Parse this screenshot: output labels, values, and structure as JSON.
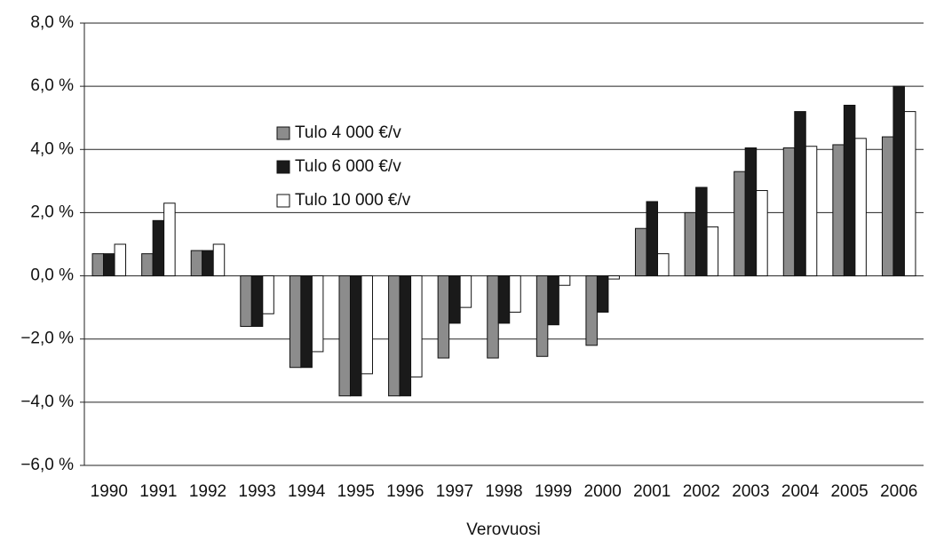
{
  "chart_data": {
    "type": "bar",
    "x_label": "Verovuosi",
    "categories": [
      "1990",
      "1991",
      "1992",
      "1993",
      "1994",
      "1995",
      "1996",
      "1997",
      "1998",
      "1999",
      "2000",
      "2001",
      "2002",
      "2003",
      "2004",
      "2005",
      "2006"
    ],
    "series": [
      {
        "name": "Tulo 4 000 €/v",
        "color": "#8c8c8c",
        "values": [
          0.7,
          0.7,
          0.8,
          -1.6,
          -2.9,
          -3.8,
          -3.8,
          -2.6,
          -2.6,
          -2.55,
          -2.2,
          1.5,
          2.0,
          3.3,
          4.05,
          4.15,
          4.4
        ]
      },
      {
        "name": "Tulo 6 000 €/v",
        "color": "#1a1a1a",
        "values": [
          0.7,
          1.75,
          0.8,
          -1.6,
          -2.9,
          -3.8,
          -3.8,
          -1.5,
          -1.5,
          -1.55,
          -1.15,
          2.35,
          2.8,
          4.05,
          5.2,
          5.4,
          6.0
        ]
      },
      {
        "name": "Tulo 10 000 €/v",
        "color": "#ffffff",
        "values": [
          1.0,
          2.3,
          1.0,
          -1.2,
          -2.4,
          -3.1,
          -3.2,
          -1.0,
          -1.15,
          -0.3,
          -0.1,
          0.7,
          1.55,
          2.7,
          4.1,
          4.35,
          5.2
        ]
      }
    ],
    "ylim": [
      -6,
      8
    ],
    "yticks": [
      {
        "value": 8,
        "label": "8,0 %"
      },
      {
        "value": 6,
        "label": "6,0 %"
      },
      {
        "value": 4,
        "label": "4,0 %"
      },
      {
        "value": 2,
        "label": "2,0 %"
      },
      {
        "value": 0,
        "label": "0,0 %"
      },
      {
        "value": -2,
        "label": "−2,0 %"
      },
      {
        "value": -4,
        "label": "−4,0 %"
      },
      {
        "value": -6,
        "label": "−6,0 %"
      }
    ],
    "grid": true
  }
}
